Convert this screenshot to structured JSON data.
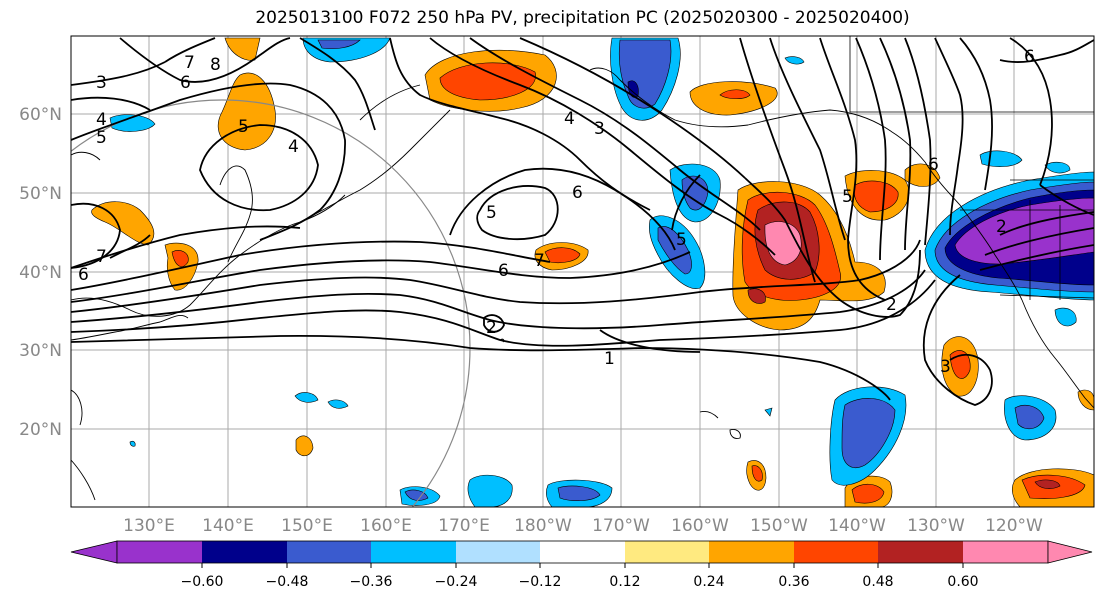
{
  "title": "2025013100 F072 250 hPa PV, precipitation PC (2025020300 - 2025020400)",
  "lat_labels": [
    "60°N",
    "50°N",
    "40°N",
    "30°N",
    "20°N"
  ],
  "lon_labels": [
    "130°E",
    "140°E",
    "150°E",
    "160°E",
    "170°E",
    "180°W",
    "170°W",
    "160°W",
    "150°W",
    "140°W",
    "130°W",
    "120°W"
  ],
  "contour_labels": [
    "3",
    "4",
    "5",
    "6",
    "7",
    "8",
    "5",
    "4",
    "7",
    "6",
    "5",
    "6",
    "6",
    "7",
    "4",
    "3",
    "5",
    "5",
    "6",
    "2",
    "2",
    "1",
    "2",
    "3",
    "6"
  ],
  "colorbar": {
    "colors": [
      "#9932cc",
      "#00008b",
      "#3a5bcf",
      "#00bfff",
      "#b0e0ff",
      "#ffffff",
      "#ffea80",
      "#ffa500",
      "#ff4500",
      "#b22222",
      "#ff88b0"
    ],
    "tick_labels": [
      "−0.60",
      "−0.48",
      "−0.36",
      "−0.24",
      "−0.12",
      "0.12",
      "0.24",
      "0.36",
      "0.48",
      "0.60"
    ]
  }
}
